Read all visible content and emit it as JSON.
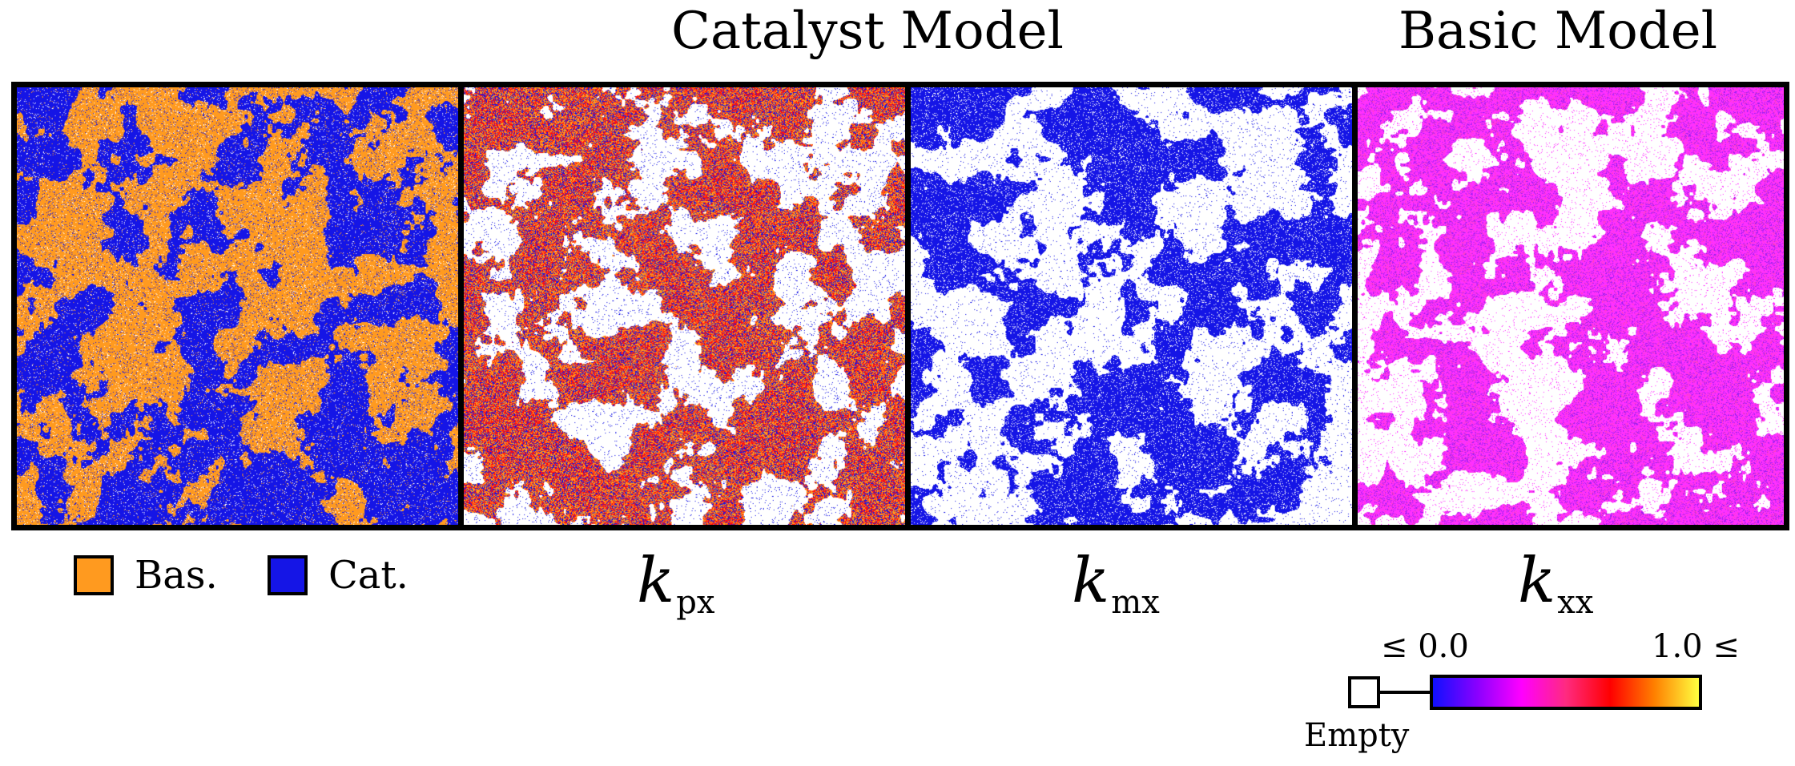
{
  "titles": {
    "catalyst": "Catalyst Model",
    "basic": "Basic Model"
  },
  "legend": [
    {
      "label": "Bas.",
      "color": "#ff9a1f"
    },
    {
      "label": "Cat.",
      "color": "#1515e6"
    }
  ],
  "panels": [
    {
      "id": "species",
      "description_label": ""
    },
    {
      "id": "k_px",
      "k": "k",
      "sub": "px"
    },
    {
      "id": "k_mx",
      "k": "k",
      "sub": "mx"
    },
    {
      "id": "k_xx",
      "k": "k",
      "sub": "xx"
    }
  ],
  "colorbar": {
    "min_label": "≤ 0.0",
    "max_label": "1.0 ≤",
    "empty_label": "Empty",
    "stops": [
      "#1010ff",
      "#8a00ff",
      "#ff00ff",
      "#ff2a80",
      "#ff0000",
      "#ff8000",
      "#ffff40"
    ]
  },
  "colors": {
    "empty": "#ffffff",
    "frame": "#000000"
  }
}
